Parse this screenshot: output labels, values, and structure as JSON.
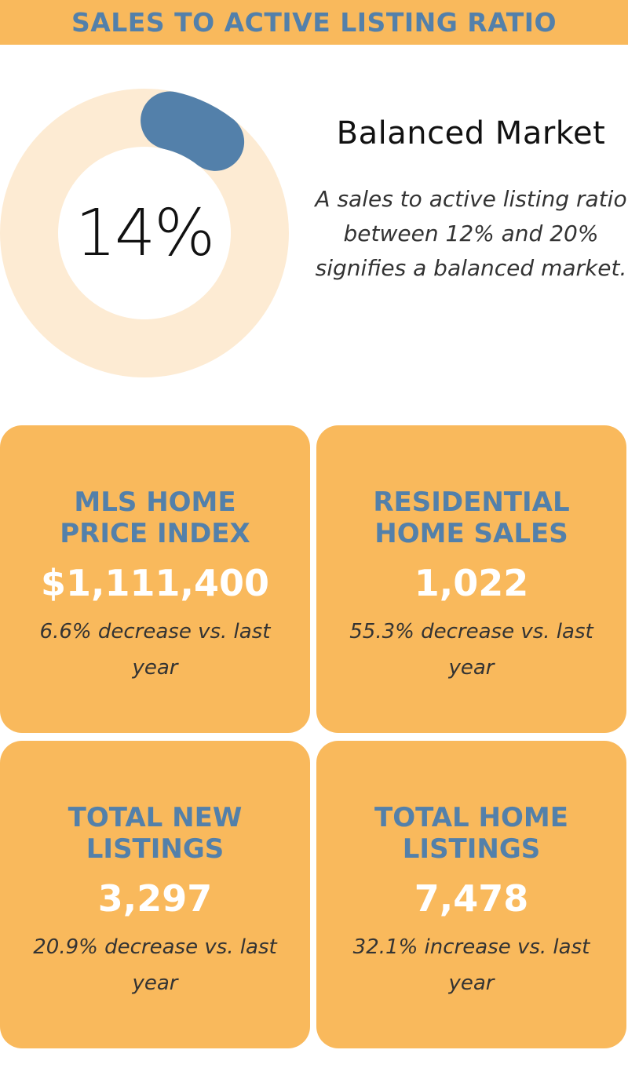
{
  "header": {
    "title": "SALES TO ACTIVE LISTING RATIO"
  },
  "ratio": {
    "value_label": "14%",
    "value": 14,
    "market_title": "Balanced Market",
    "description": "A sales to active listing ratio between 12% and 20% signifies a balanced market."
  },
  "colors": {
    "accent": "#F9B95C",
    "heading_blue": "#5380AA",
    "donut_track": "#FDEBD3",
    "donut_fill": "#5380AA"
  },
  "cards": [
    {
      "title": "MLS HOME\nPRICE INDEX",
      "value": "$1,111,400",
      "change": "6.6% decrease vs. last year"
    },
    {
      "title": "RESIDENTIAL\nHOME SALES",
      "value": "1,022",
      "change": "55.3% decrease vs. last year"
    },
    {
      "title": "TOTAL NEW\nLISTINGS",
      "value": "3,297",
      "change": "20.9% decrease vs. last year"
    },
    {
      "title": "TOTAL HOME\nLISTINGS",
      "value": "7,478",
      "change": "32.1% increase vs. last year"
    }
  ]
}
